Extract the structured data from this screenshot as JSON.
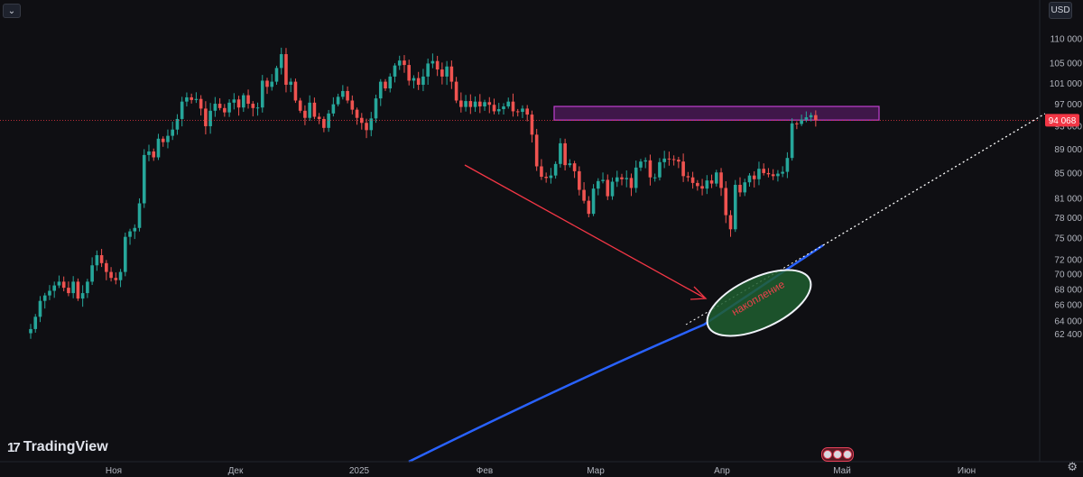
{
  "toolbar": {
    "menu_icon": "chevron-down-icon",
    "currency_label": "USD"
  },
  "branding": {
    "logo_text": "TradingView",
    "logo_icon": "tradingview-logo-icon"
  },
  "settings_icon": "gear-icon",
  "events_icon": "economic-events-icon",
  "colors": {
    "background": "#0f0f13",
    "up": "#26a69a",
    "down": "#ef5350",
    "trendline": "#2962ff",
    "zone_fill": "#9c27b0",
    "zone_border": "#c040d0",
    "ellipse_fill": "#1f5e30",
    "arrow": "#f23645",
    "price_tag": "#f23645"
  },
  "chart_data": {
    "type": "candlestick",
    "x_axis_labels": [
      "Ноя",
      "Дек",
      "2025",
      "Фев",
      "Мар",
      "Апр",
      "Май",
      "Июн"
    ],
    "y_axis_labels": [
      110000,
      105000,
      101000,
      97000,
      93000,
      89000,
      85000,
      81000,
      78000,
      75000,
      72000,
      70000,
      68000,
      66000,
      64000,
      62400
    ],
    "y_axis_display": [
      "110 000",
      "105 000",
      "101 000",
      "97 000",
      "93 000",
      "89 000",
      "85 000",
      "81 000",
      "78 000",
      "75 000",
      "72 000",
      "70 000",
      "68 000",
      "66 000",
      "64 000",
      "62 400"
    ],
    "ylim": [
      61500,
      112000
    ],
    "scale": "log",
    "last_price": 94068,
    "last_price_label": "94 068",
    "closes": [
      63000,
      64500,
      66500,
      67200,
      67800,
      68500,
      69000,
      68200,
      67500,
      69000,
      66800,
      67500,
      69000,
      71200,
      72600,
      71500,
      70300,
      69500,
      69200,
      70300,
      75200,
      76000,
      76500,
      80200,
      88000,
      88600,
      87600,
      90800,
      90200,
      91300,
      92400,
      94300,
      97500,
      98300,
      97800,
      98000,
      96200,
      93000,
      95800,
      97100,
      96300,
      95500,
      97300,
      97900,
      96400,
      98700,
      97100,
      96300,
      96400,
      101500,
      100300,
      101300,
      104000,
      106800,
      100700,
      101300,
      97700,
      95800,
      94500,
      97300,
      94700,
      94300,
      92700,
      95300,
      97000,
      98400,
      99500,
      97700,
      96000,
      94500,
      93600,
      92300,
      94400,
      98100,
      101300,
      100000,
      102300,
      104500,
      105500,
      104600,
      101500,
      102000,
      100700,
      102300,
      104900,
      105400,
      103700,
      102300,
      104300,
      101300,
      97700,
      96500,
      97600,
      96500,
      97500,
      96600,
      97400,
      96900,
      95700,
      96100,
      96600,
      97500,
      95700,
      95600,
      96200,
      95100,
      91500,
      86100,
      84400,
      84200,
      84600,
      86500,
      90000,
      86300,
      86600,
      85300,
      82300,
      80600,
      78600,
      82500,
      83700,
      83900,
      81300,
      83600,
      84300,
      84000,
      84200,
      82600,
      85900,
      86900,
      87100,
      84300,
      84300,
      86800,
      87400,
      87300,
      87200,
      86900,
      84500,
      84300,
      83400,
      82900,
      82500,
      83800,
      83300,
      85100,
      82600,
      78400,
      76300,
      83100,
      81900,
      83500,
      84600,
      84000,
      85700,
      85000,
      84800,
      84500,
      84900,
      85200,
      87500,
      93500,
      93400,
      94200,
      94600,
      95000,
      94068
    ],
    "series": [
      {
        "name": "",
        "type": "trendline",
        "style": "solid"
      }
    ],
    "annotations": {
      "resistance_zone": {
        "y_range": [
          94100,
          96600
        ]
      },
      "ellipse_label": "накопление",
      "arrow": {
        "direction": "down-right"
      },
      "trendline": {
        "extension": "dotted"
      }
    },
    "grid": false,
    "legend": "none",
    "title": ""
  }
}
